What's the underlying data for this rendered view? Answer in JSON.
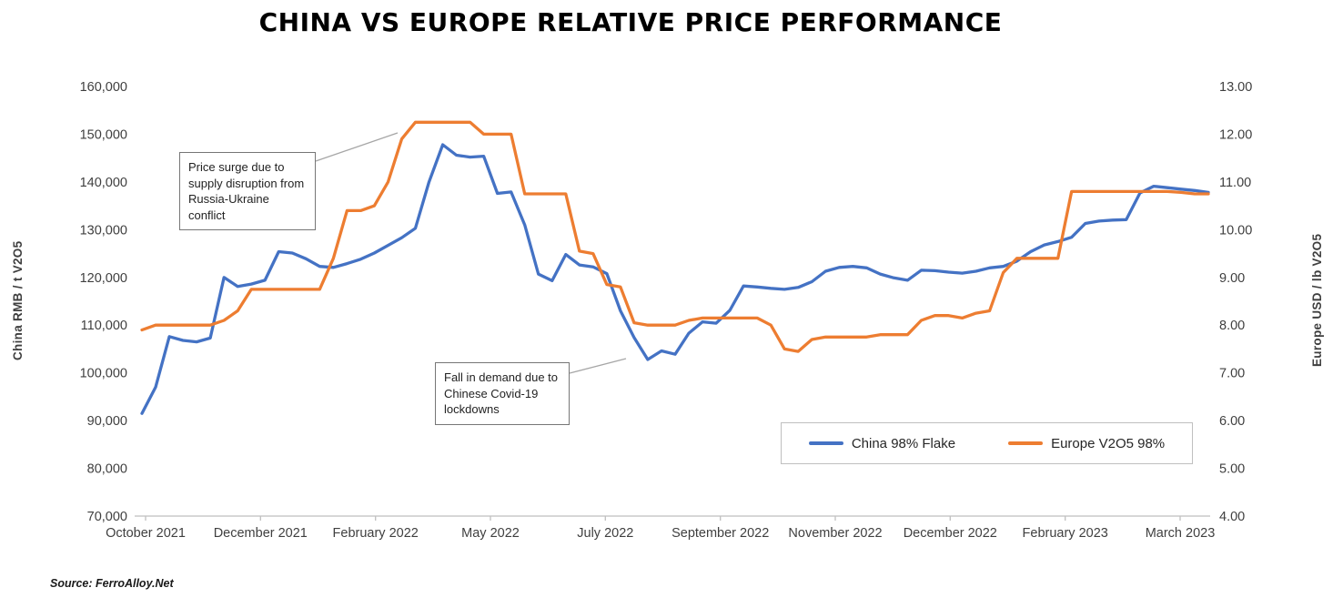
{
  "title": "CHINA VS EUROPE RELATIVE PRICE PERFORMANCE",
  "source_note": "Source: FerroAlloy.Net",
  "chart_data": {
    "type": "line",
    "title": "CHINA VS EUROPE RELATIVE PRICE PERFORMANCE",
    "grid": false,
    "legend_position": "bottom-right-inside",
    "x_tick_labels": [
      "October 2021",
      "December 2021",
      "February 2022",
      "May 2022",
      "July 2022",
      "September 2022",
      "November 2022",
      "December 2022",
      "February 2023",
      "March 2023"
    ],
    "left_axis": {
      "title": "China RMB / t V2O5",
      "min": 70000,
      "max": 160000,
      "step": 10000,
      "tick_labels": [
        "70,000",
        "80,000",
        "90,000",
        "100,000",
        "110,000",
        "120,000",
        "130,000",
        "140,000",
        "150,000",
        "160,000"
      ]
    },
    "right_axis": {
      "title": "Europe USD / lb V2O5",
      "min": 4,
      "max": 13,
      "step": 1,
      "tick_labels": [
        "4.00",
        "5.00",
        "6.00",
        "7.00",
        "8.00",
        "9.00",
        "10.00",
        "11.00",
        "12.00",
        "13.00"
      ]
    },
    "series": [
      {
        "name": "China 98% Flake",
        "color": "#4472C4",
        "axis": "left",
        "values": [
          91500,
          97000,
          107600,
          106800,
          106500,
          107300,
          120000,
          118100,
          118600,
          119400,
          125400,
          125100,
          123900,
          122300,
          122100,
          122900,
          123800,
          125100,
          126700,
          128300,
          130300,
          140000,
          147800,
          145600,
          145200,
          145400,
          137600,
          137900,
          131000,
          120700,
          119300,
          124800,
          122600,
          122200,
          120800,
          113000,
          107400,
          102800,
          104600,
          103900,
          108300,
          110700,
          110400,
          113100,
          118200,
          118000,
          117700,
          117500,
          117900,
          119100,
          121300,
          122100,
          122300,
          122000,
          120700,
          119900,
          119400,
          121500,
          121400,
          121100,
          120900,
          121300,
          122000,
          122300,
          123400,
          125400,
          126800,
          127500,
          128400,
          131300,
          131800,
          132000,
          132100,
          137700,
          139100,
          138800,
          138500,
          138200,
          137800
        ]
      },
      {
        "name": "Europe V2O5 98%",
        "color": "#ED7D31",
        "axis": "right",
        "values": [
          7.9,
          8.0,
          8.0,
          8.0,
          8.0,
          8.0,
          8.1,
          8.3,
          8.75,
          8.75,
          8.75,
          8.75,
          8.75,
          8.75,
          9.4,
          10.4,
          10.4,
          10.5,
          11.0,
          11.9,
          12.25,
          12.25,
          12.25,
          12.25,
          12.25,
          12.0,
          12.0,
          12.0,
          10.75,
          10.75,
          10.75,
          10.75,
          9.55,
          9.5,
          8.85,
          8.8,
          8.05,
          8.0,
          8.0,
          8.0,
          8.1,
          8.15,
          8.15,
          8.15,
          8.15,
          8.15,
          8.0,
          7.5,
          7.45,
          7.7,
          7.75,
          7.75,
          7.75,
          7.75,
          7.8,
          7.8,
          7.8,
          8.1,
          8.2,
          8.2,
          8.15,
          8.25,
          8.3,
          9.1,
          9.4,
          9.4,
          9.4,
          9.4,
          10.8,
          10.8,
          10.8,
          10.8,
          10.8,
          10.8,
          10.8,
          10.8,
          10.78,
          10.75,
          10.75
        ]
      }
    ],
    "annotations": [
      {
        "text": "Price surge due to supply disruption from Russia-Ukraine conflict"
      },
      {
        "text": "Fall in demand due to Chinese Covid-19 lockdowns"
      }
    ]
  }
}
